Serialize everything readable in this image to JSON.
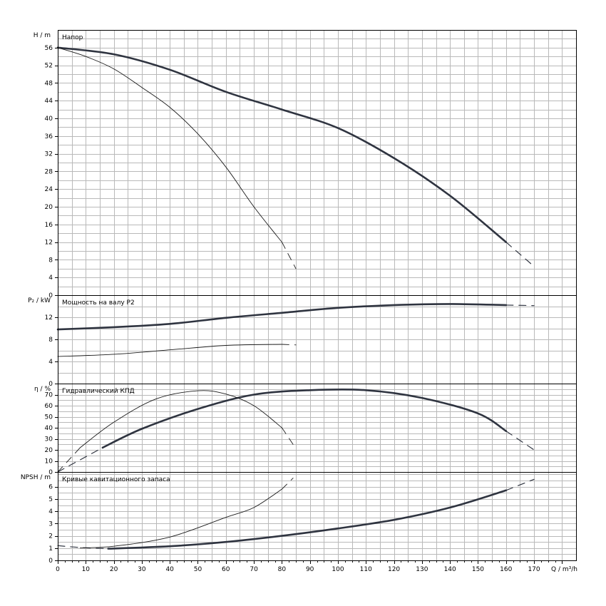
{
  "chart_data": {
    "type": "line",
    "x_axis": {
      "label": "Q / m³/h",
      "range": [
        0,
        185
      ],
      "ticks": [
        "0",
        "10",
        "20",
        "30",
        "40",
        "50",
        "60",
        "70",
        "80",
        "90",
        "100",
        "110",
        "120",
        "130",
        "140",
        "150",
        "160",
        "170"
      ]
    },
    "panels": [
      {
        "id": "head",
        "title": "Напор",
        "ylabel": "H / m",
        "ylim": [
          0,
          60
        ],
        "yticks": [
          "0",
          "4",
          "8",
          "12",
          "16",
          "20",
          "24",
          "28",
          "32",
          "36",
          "40",
          "44",
          "48",
          "52",
          "56"
        ],
        "series": [
          {
            "weight": "thick",
            "points": [
              [
                0,
                56
              ],
              [
                20,
                54.5
              ],
              [
                40,
                51
              ],
              [
                60,
                46
              ],
              [
                80,
                42
              ],
              [
                100,
                37.8
              ],
              [
                120,
                31
              ],
              [
                140,
                22.5
              ],
              [
                160,
                12
              ]
            ],
            "dashed_end": [
              [
                160,
                12
              ],
              [
                170,
                6.5
              ]
            ]
          },
          {
            "weight": "thin",
            "points": [
              [
                0,
                56
              ],
              [
                10,
                54
              ],
              [
                20,
                51.2
              ],
              [
                30,
                47
              ],
              [
                40,
                42.5
              ],
              [
                50,
                36.5
              ],
              [
                60,
                29
              ],
              [
                70,
                20
              ],
              [
                80,
                12
              ]
            ],
            "dashed_end": [
              [
                80,
                12
              ],
              [
                85,
                6
              ]
            ]
          }
        ]
      },
      {
        "id": "power",
        "title": "Мощность на валу P2",
        "ylabel": "P₂ / kW",
        "ylim": [
          0,
          16
        ],
        "yticks": [
          "0",
          "4",
          "8",
          "12"
        ],
        "series": [
          {
            "weight": "thick",
            "points": [
              [
                0,
                9.8
              ],
              [
                20,
                10.2
              ],
              [
                40,
                10.8
              ],
              [
                60,
                11.9
              ],
              [
                80,
                12.8
              ],
              [
                100,
                13.7
              ],
              [
                120,
                14.2
              ],
              [
                140,
                14.4
              ],
              [
                160,
                14.2
              ]
            ],
            "dashed_end": [
              [
                160,
                14.2
              ],
              [
                170,
                14.1
              ]
            ]
          },
          {
            "weight": "thin",
            "points": [
              [
                0,
                4.9
              ],
              [
                20,
                5.3
              ],
              [
                40,
                6.1
              ],
              [
                60,
                6.9
              ],
              [
                80,
                7.1
              ]
            ],
            "dashed_end": [
              [
                80,
                7.1
              ],
              [
                85,
                7.0
              ]
            ]
          }
        ]
      },
      {
        "id": "efficiency",
        "title": "Гидравлический КПД",
        "ylabel": "η / %",
        "ylim": [
          0,
          80
        ],
        "yticks": [
          "0",
          "10",
          "20",
          "30",
          "40",
          "50",
          "60",
          "70"
        ],
        "series": [
          {
            "weight": "thick",
            "points": [
              [
                16,
                22
              ],
              [
                30,
                39
              ],
              [
                50,
                57
              ],
              [
                70,
                70
              ],
              [
                90,
                74
              ],
              [
                110,
                74
              ],
              [
                130,
                67
              ],
              [
                150,
                53
              ],
              [
                160,
                37
              ]
            ],
            "dashed_start": [
              [
                0,
                0
              ],
              [
                16,
                22
              ]
            ],
            "dashed_end": [
              [
                160,
                37
              ],
              [
                170,
                20
              ]
            ]
          },
          {
            "weight": "thin",
            "points": [
              [
                8,
                22
              ],
              [
                20,
                45
              ],
              [
                35,
                66
              ],
              [
                50,
                73.5
              ],
              [
                60,
                70.5
              ],
              [
                70,
                60
              ],
              [
                80,
                40
              ]
            ],
            "dashed_start": [
              [
                0,
                0
              ],
              [
                8,
                22
              ]
            ],
            "dashed_end": [
              [
                80,
                40
              ],
              [
                84,
                25
              ]
            ]
          }
        ]
      },
      {
        "id": "npsh",
        "title": "Кривые кавитационного запаса",
        "ylabel": "NPSH / m",
        "ylim": [
          0,
          7.2
        ],
        "yticks": [
          "0",
          "1",
          "2",
          "3",
          "4",
          "5",
          "6"
        ],
        "series": [
          {
            "weight": "thick",
            "points": [
              [
                18,
                0.95
              ],
              [
                40,
                1.15
              ],
              [
                60,
                1.5
              ],
              [
                80,
                2.0
              ],
              [
                100,
                2.6
              ],
              [
                120,
                3.3
              ],
              [
                140,
                4.3
              ],
              [
                160,
                5.7
              ]
            ],
            "dashed_start": [
              [
                0,
                1.2
              ],
              [
                8,
                1.05
              ],
              [
                18,
                0.95
              ]
            ],
            "dashed_end": [
              [
                160,
                5.7
              ],
              [
                170,
                6.6
              ]
            ]
          },
          {
            "weight": "thin",
            "points": [
              [
                8,
                1.02
              ],
              [
                20,
                1.15
              ],
              [
                40,
                1.9
              ],
              [
                60,
                3.5
              ],
              [
                70,
                4.3
              ],
              [
                80,
                5.8
              ]
            ],
            "dashed_end": [
              [
                80,
                5.8
              ],
              [
                84,
                6.7
              ]
            ]
          }
        ]
      }
    ]
  }
}
